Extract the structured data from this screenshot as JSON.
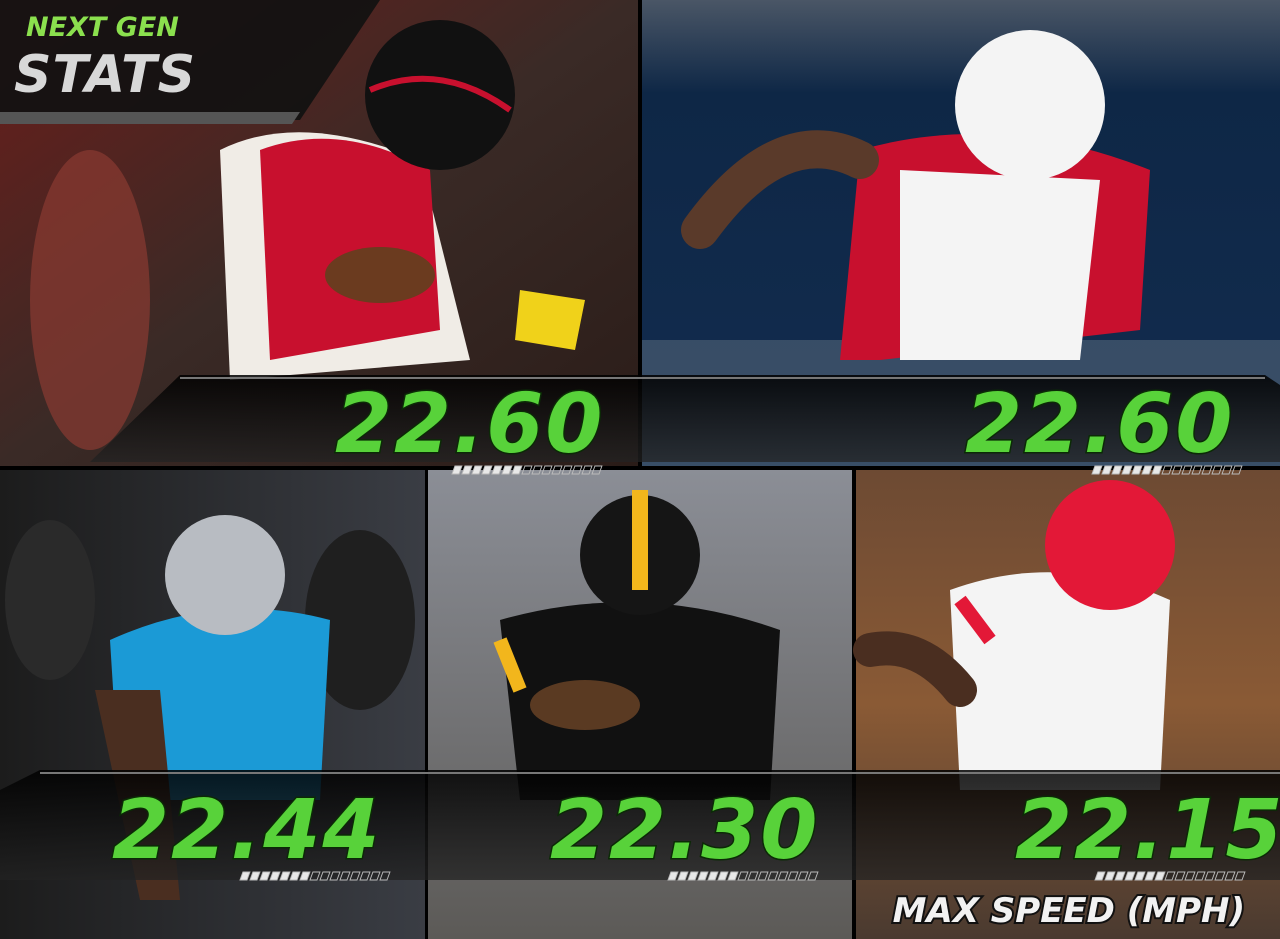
{
  "logo": {
    "line1": "NEXT GEN",
    "line2": "STATS"
  },
  "players": [
    {
      "speed": "22.60"
    },
    {
      "speed": "22.60"
    },
    {
      "speed": "22.44"
    },
    {
      "speed": "22.30"
    },
    {
      "speed": "22.15"
    }
  ],
  "caption": "MAX SPEED (MPH)"
}
